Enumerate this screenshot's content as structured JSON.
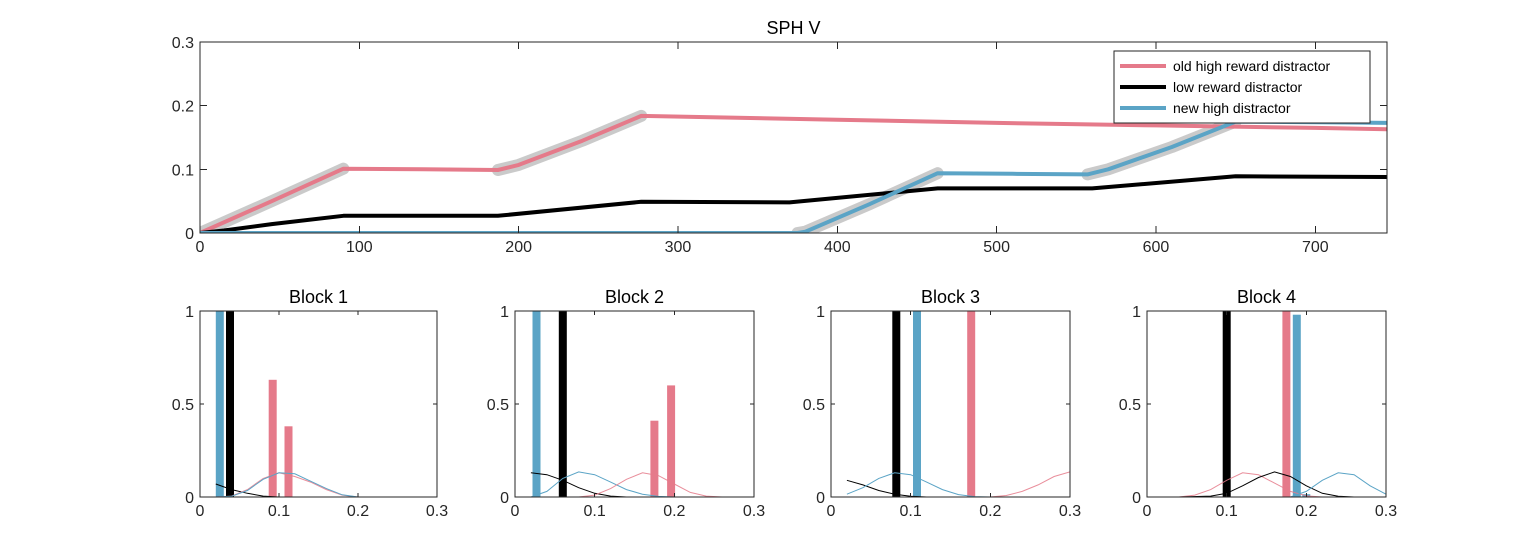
{
  "colors": {
    "old_high": "#e57a8a",
    "low": "#000000",
    "new_high": "#5ba4c6",
    "band": "#c4c4c4"
  },
  "chart_data": [
    {
      "type": "line",
      "title": "SPH  V",
      "xlim": [
        0,
        745
      ],
      "ylim": [
        0,
        0.3
      ],
      "xticks": [
        0,
        100,
        200,
        300,
        400,
        500,
        600,
        700
      ],
      "yticks": [
        0,
        0.1,
        0.2,
        0.3
      ],
      "legend_position": "top-right",
      "series": [
        {
          "name": "old high reward distractor",
          "color_key": "old_high",
          "points": [
            [
              0,
              0
            ],
            [
              45,
              0.05
            ],
            [
              90,
              0.101
            ],
            [
              140,
              0.1
            ],
            [
              187,
              0.099
            ],
            [
              200,
              0.107
            ],
            [
              240,
              0.145
            ],
            [
              277,
              0.184
            ],
            [
              400,
              0.178
            ],
            [
              500,
              0.173
            ],
            [
              600,
              0.169
            ],
            [
              700,
              0.165
            ],
            [
              745,
              0.163
            ]
          ],
          "band_segments": [
            [
              0,
              90
            ],
            [
              187,
              277
            ]
          ]
        },
        {
          "name": "low reward distractor",
          "color_key": "low",
          "points": [
            [
              0,
              0
            ],
            [
              15,
              0.004
            ],
            [
              45,
              0.014
            ],
            [
              90,
              0.027
            ],
            [
              187,
              0.027
            ],
            [
              277,
              0.049
            ],
            [
              370,
              0.048
            ],
            [
              463,
              0.07
            ],
            [
              560,
              0.07
            ],
            [
              650,
              0.089
            ],
            [
              745,
              0.088
            ]
          ]
        },
        {
          "name": "new high distractor",
          "color_key": "new_high",
          "points": [
            [
              0,
              0
            ],
            [
              375,
              0
            ],
            [
              380,
              0.002
            ],
            [
              420,
              0.045
            ],
            [
              463,
              0.094
            ],
            [
              510,
              0.093
            ],
            [
              557,
              0.092
            ],
            [
              570,
              0.1
            ],
            [
              610,
              0.135
            ],
            [
              650,
              0.175
            ],
            [
              700,
              0.174
            ],
            [
              745,
              0.173
            ]
          ],
          "band_segments": [
            [
              375,
              463
            ],
            [
              557,
              650
            ]
          ]
        }
      ]
    },
    {
      "type": "bar",
      "title": "Block 1",
      "xlim": [
        0,
        0.3
      ],
      "ylim": [
        0,
        1
      ],
      "xticks": [
        0,
        0.1,
        0.2,
        0.3
      ],
      "xtick_labels": [
        "0",
        "0.1",
        "0.2",
        "0.3"
      ],
      "yticks": [
        0,
        0.5,
        1
      ],
      "ytick_labels": [
        "0",
        "0.5",
        "1"
      ],
      "bars": [
        {
          "color_key": "new_high",
          "x": 0.025,
          "value": 1.0
        },
        {
          "color_key": "low",
          "x": 0.038,
          "value": 1.0
        },
        {
          "color_key": "old_high",
          "x": 0.092,
          "value": 0.63
        },
        {
          "color_key": "old_high",
          "x": 0.112,
          "value": 0.38
        }
      ],
      "curves": [
        {
          "color_key": "low",
          "points": [
            [
              0.02,
              0.07
            ],
            [
              0.04,
              0.04
            ],
            [
              0.06,
              0.02
            ],
            [
              0.08,
              0.005
            ],
            [
              0.1,
              0
            ],
            [
              0.3,
              0
            ]
          ]
        },
        {
          "color_key": "old_high",
          "points": [
            [
              0.02,
              0
            ],
            [
              0.04,
              0.005
            ],
            [
              0.06,
              0.04
            ],
            [
              0.08,
              0.1
            ],
            [
              0.1,
              0.13
            ],
            [
              0.12,
              0.11
            ],
            [
              0.14,
              0.08
            ],
            [
              0.16,
              0.04
            ],
            [
              0.18,
              0.01
            ],
            [
              0.2,
              0
            ],
            [
              0.3,
              0
            ]
          ]
        },
        {
          "color_key": "new_high",
          "points": [
            [
              0.02,
              0
            ],
            [
              0.04,
              0.004
            ],
            [
              0.06,
              0.035
            ],
            [
              0.08,
              0.095
            ],
            [
              0.1,
              0.13
            ],
            [
              0.12,
              0.125
            ],
            [
              0.14,
              0.085
            ],
            [
              0.16,
              0.045
            ],
            [
              0.18,
              0.012
            ],
            [
              0.2,
              0
            ],
            [
              0.3,
              0
            ]
          ]
        }
      ]
    },
    {
      "type": "bar",
      "title": "Block 2",
      "xlim": [
        0,
        0.3
      ],
      "ylim": [
        0,
        1
      ],
      "xticks": [
        0,
        0.1,
        0.2,
        0.3
      ],
      "xtick_labels": [
        "0",
        "0.1",
        "0.2",
        "0.3"
      ],
      "yticks": [
        0,
        0.5,
        1
      ],
      "ytick_labels": [
        "0",
        "0.5",
        "1"
      ],
      "bars": [
        {
          "color_key": "new_high",
          "x": 0.027,
          "value": 1.0
        },
        {
          "color_key": "low",
          "x": 0.06,
          "value": 1.0
        },
        {
          "color_key": "old_high",
          "x": 0.175,
          "value": 0.41
        },
        {
          "color_key": "old_high",
          "x": 0.196,
          "value": 0.6
        }
      ],
      "curves": [
        {
          "color_key": "low",
          "points": [
            [
              0.02,
              0.13
            ],
            [
              0.04,
              0.12
            ],
            [
              0.06,
              0.09
            ],
            [
              0.08,
              0.05
            ],
            [
              0.1,
              0.02
            ],
            [
              0.12,
              0.005
            ],
            [
              0.14,
              0
            ],
            [
              0.3,
              0
            ]
          ]
        },
        {
          "color_key": "new_high",
          "points": [
            [
              0.02,
              0
            ],
            [
              0.04,
              0.03
            ],
            [
              0.06,
              0.1
            ],
            [
              0.08,
              0.135
            ],
            [
              0.1,
              0.12
            ],
            [
              0.12,
              0.08
            ],
            [
              0.14,
              0.04
            ],
            [
              0.16,
              0.015
            ],
            [
              0.18,
              0.003
            ],
            [
              0.2,
              0
            ],
            [
              0.3,
              0
            ]
          ]
        },
        {
          "color_key": "old_high",
          "points": [
            [
              0.08,
              0
            ],
            [
              0.1,
              0.01
            ],
            [
              0.12,
              0.045
            ],
            [
              0.14,
              0.095
            ],
            [
              0.16,
              0.13
            ],
            [
              0.18,
              0.115
            ],
            [
              0.2,
              0.07
            ],
            [
              0.22,
              0.025
            ],
            [
              0.24,
              0.005
            ],
            [
              0.26,
              0
            ],
            [
              0.3,
              0
            ]
          ]
        }
      ]
    },
    {
      "type": "bar",
      "title": "Block 3",
      "xlim": [
        0,
        0.3
      ],
      "ylim": [
        0,
        1
      ],
      "xticks": [
        0,
        0.1,
        0.2,
        0.3
      ],
      "xtick_labels": [
        "0",
        "0.1",
        "0.2",
        "0.3"
      ],
      "yticks": [
        0,
        0.5,
        1
      ],
      "ytick_labels": [
        "0",
        "0.5",
        "1"
      ],
      "bars": [
        {
          "color_key": "low",
          "x": 0.082,
          "value": 1.0
        },
        {
          "color_key": "new_high",
          "x": 0.108,
          "value": 1.0
        },
        {
          "color_key": "old_high",
          "x": 0.176,
          "value": 1.0
        }
      ],
      "curves": [
        {
          "color_key": "low",
          "points": [
            [
              0.02,
              0.09
            ],
            [
              0.04,
              0.065
            ],
            [
              0.06,
              0.035
            ],
            [
              0.08,
              0.015
            ],
            [
              0.1,
              0.004
            ],
            [
              0.12,
              0
            ],
            [
              0.3,
              0
            ]
          ]
        },
        {
          "color_key": "new_high",
          "points": [
            [
              0.02,
              0.015
            ],
            [
              0.04,
              0.05
            ],
            [
              0.06,
              0.1
            ],
            [
              0.08,
              0.13
            ],
            [
              0.1,
              0.12
            ],
            [
              0.12,
              0.08
            ],
            [
              0.14,
              0.04
            ],
            [
              0.16,
              0.013
            ],
            [
              0.18,
              0.002
            ],
            [
              0.2,
              0
            ],
            [
              0.3,
              0
            ]
          ]
        },
        {
          "color_key": "old_high",
          "points": [
            [
              0.2,
              0
            ],
            [
              0.22,
              0.008
            ],
            [
              0.24,
              0.03
            ],
            [
              0.26,
              0.065
            ],
            [
              0.28,
              0.11
            ],
            [
              0.3,
              0.135
            ]
          ]
        }
      ]
    },
    {
      "type": "bar",
      "title": "Block 4",
      "xlim": [
        0,
        0.3
      ],
      "ylim": [
        0,
        1
      ],
      "xticks": [
        0,
        0.1,
        0.2,
        0.3
      ],
      "xtick_labels": [
        "0",
        "0.1",
        "0.2",
        "0.3"
      ],
      "yticks": [
        0,
        0.5,
        1
      ],
      "ytick_labels": [
        "0",
        "0.5",
        "1"
      ],
      "bars": [
        {
          "color_key": "low",
          "x": 0.1,
          "value": 1.0
        },
        {
          "color_key": "old_high",
          "x": 0.175,
          "value": 1.0
        },
        {
          "color_key": "new_high",
          "x": 0.188,
          "value": 0.98
        },
        {
          "color_key": "new_high",
          "x": 0.2,
          "value": 0.015
        }
      ],
      "curves": [
        {
          "color_key": "old_high",
          "points": [
            [
              0.04,
              0
            ],
            [
              0.06,
              0.01
            ],
            [
              0.08,
              0.04
            ],
            [
              0.1,
              0.09
            ],
            [
              0.12,
              0.13
            ],
            [
              0.14,
              0.12
            ],
            [
              0.16,
              0.075
            ],
            [
              0.18,
              0.03
            ],
            [
              0.2,
              0.006
            ],
            [
              0.22,
              0
            ],
            [
              0.3,
              0
            ]
          ]
        },
        {
          "color_key": "low",
          "points": [
            [
              0.04,
              0
            ],
            [
              0.08,
              0.005
            ],
            [
              0.1,
              0.02
            ],
            [
              0.12,
              0.06
            ],
            [
              0.14,
              0.105
            ],
            [
              0.16,
              0.135
            ],
            [
              0.18,
              0.11
            ],
            [
              0.2,
              0.06
            ],
            [
              0.22,
              0.02
            ],
            [
              0.24,
              0.004
            ],
            [
              0.26,
              0
            ],
            [
              0.3,
              0
            ]
          ]
        },
        {
          "color_key": "new_high",
          "points": [
            [
              0.18,
              0
            ],
            [
              0.2,
              0.03
            ],
            [
              0.22,
              0.09
            ],
            [
              0.24,
              0.13
            ],
            [
              0.26,
              0.12
            ],
            [
              0.28,
              0.06
            ],
            [
              0.3,
              0.015
            ]
          ]
        }
      ]
    }
  ]
}
